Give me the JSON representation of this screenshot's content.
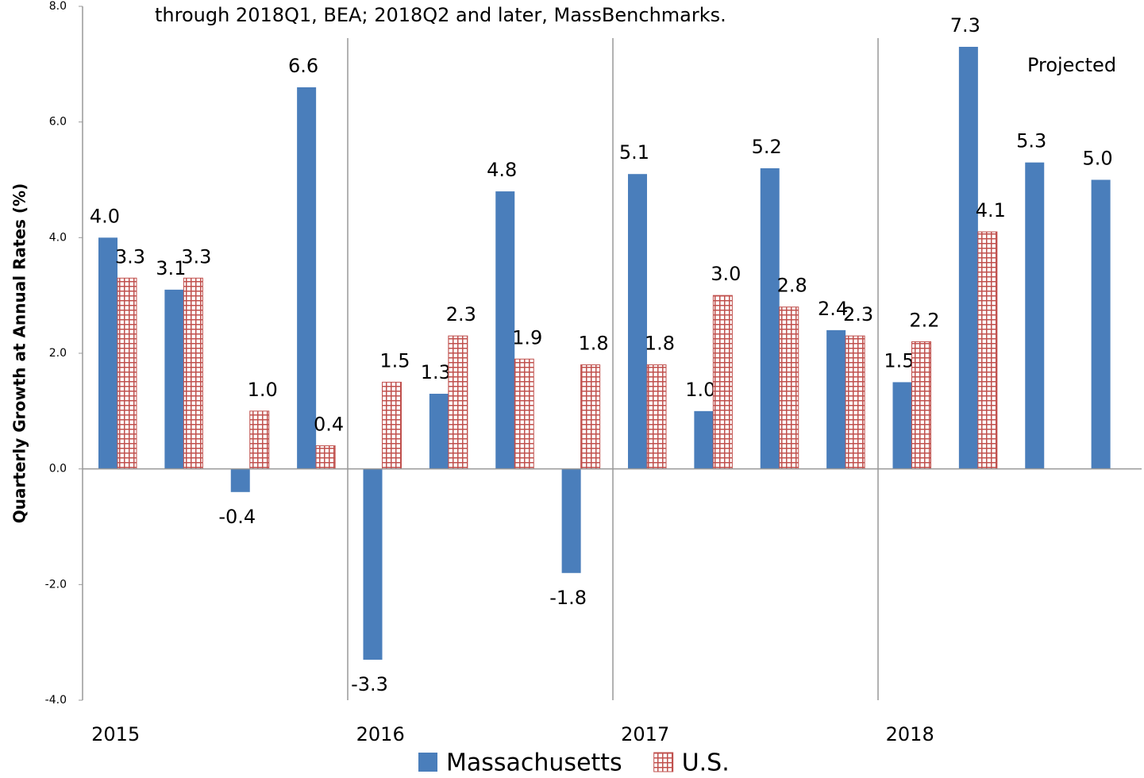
{
  "chart_data": {
    "type": "bar",
    "subtitle": "through 2018Q1, BEA; 2018Q2 and later, MassBenchmarks.",
    "annotation": "Projected",
    "y_label": "Quarterly Growth at Annual Rates (%)",
    "categories": [
      "2015",
      null,
      null,
      null,
      "2016",
      null,
      null,
      null,
      "2017",
      null,
      null,
      null,
      "2018",
      null,
      null,
      null
    ],
    "series": [
      {
        "name": "Massachusetts",
        "color": "#4a7ebb",
        "values": [
          4.0,
          3.1,
          -0.4,
          6.6,
          -3.3,
          1.3,
          4.8,
          -1.8,
          5.1,
          1.0,
          5.2,
          2.4,
          1.5,
          7.3,
          5.3,
          5.0
        ],
        "value_labels": [
          "4.0",
          "3.1",
          "-0.4",
          "6.6",
          "-3.3",
          "1.3",
          "4.8",
          "-1.8",
          "5.1",
          "1.0",
          "5.2",
          "2.4",
          "1.5",
          "7.3",
          "5.3",
          "5.0"
        ]
      },
      {
        "name": "U.S.",
        "color": "#c0504d",
        "values": [
          3.3,
          3.3,
          1.0,
          0.4,
          1.5,
          2.3,
          1.9,
          1.8,
          1.8,
          3.0,
          2.8,
          2.3,
          2.2,
          4.1,
          null,
          null
        ],
        "value_labels": [
          "3.3",
          "3.3",
          "1.0",
          "0.4",
          "1.5",
          "2.3",
          "1.9",
          "1.8",
          "1.8",
          "3.0",
          "2.8",
          "2.3",
          "2.2",
          "4.1",
          null,
          null
        ]
      }
    ],
    "ylim": [
      -4,
      8
    ],
    "yticks": [
      {
        "value": -4,
        "label": "-4.0"
      },
      {
        "value": -2,
        "label": "-2.0"
      },
      {
        "value": 0,
        "label": "0.0"
      },
      {
        "value": 2,
        "label": "2.0"
      },
      {
        "value": 4,
        "label": "4.0"
      },
      {
        "value": 6,
        "label": "6.0"
      },
      {
        "value": 8,
        "label": "8.0"
      }
    ],
    "legend": "bottom"
  }
}
